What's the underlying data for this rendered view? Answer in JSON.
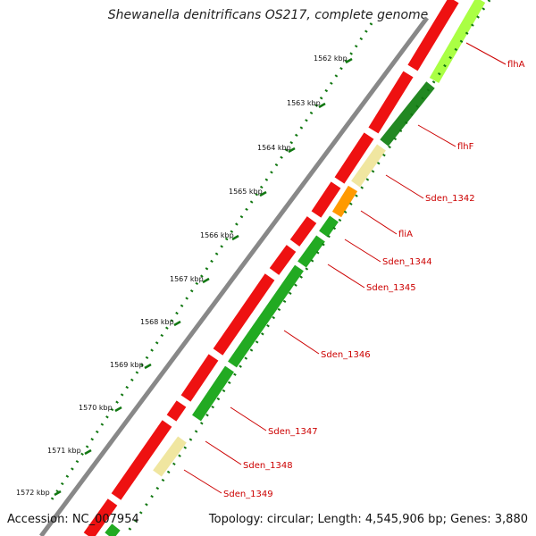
{
  "title": "Shewanella denitrificans OS217, complete genome",
  "footer": {
    "accession": "Accession: NC_007954",
    "summary": "Topology: circular; Length: 4,545,906 bp; Genes: 3,880"
  },
  "colors": {
    "forward_cds": "#ee1111",
    "reverse_cds": "#22aa22",
    "reverse_cds_light": "#aaff44",
    "hypothetical": "#f0e6a0",
    "sigma": "#ff9900",
    "backbone": "#888888",
    "ticks": "#117711",
    "label": "#cc0000"
  },
  "kbp_labels": [
    "1562 kbp",
    "1563 kbp",
    "1564 kbp",
    "1565 kbp",
    "1566 kbp",
    "1567 kbp",
    "1568 kbp",
    "1569 kbp",
    "1570 kbp",
    "1571 kbp",
    "1572 kbp"
  ],
  "genes": [
    {
      "label": "flhA"
    },
    {
      "label": "flhF"
    },
    {
      "label": "Sden_1342"
    },
    {
      "label": "fliA"
    },
    {
      "label": "Sden_1344"
    },
    {
      "label": "Sden_1345"
    },
    {
      "label": "Sden_1346"
    },
    {
      "label": "Sden_1347"
    },
    {
      "label": "Sden_1348"
    },
    {
      "label": "Sden_1349"
    }
  ]
}
